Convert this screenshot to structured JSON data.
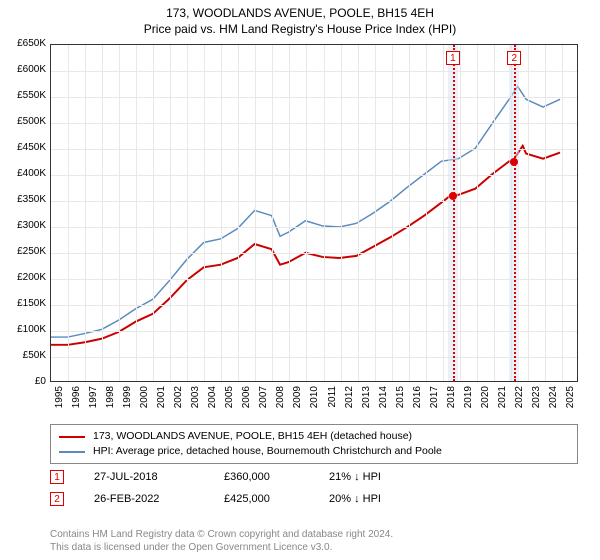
{
  "title_line1": "173, WOODLANDS AVENUE, POOLE, BH15 4EH",
  "title_line2": "Price paid vs. HM Land Registry's House Price Index (HPI)",
  "chart": {
    "type": "line",
    "ylim": [
      0,
      650000
    ],
    "ytick_step": 50000,
    "ytick_labels": [
      "£0",
      "£50K",
      "£100K",
      "£150K",
      "£200K",
      "£250K",
      "£300K",
      "£350K",
      "£400K",
      "£450K",
      "£500K",
      "£550K",
      "£600K",
      "£650K"
    ],
    "xlim": [
      1995,
      2026
    ],
    "xtick_labels": [
      "1995",
      "1996",
      "1997",
      "1998",
      "1999",
      "2000",
      "2001",
      "2002",
      "2003",
      "2004",
      "2005",
      "2006",
      "2007",
      "2008",
      "2009",
      "2010",
      "2011",
      "2012",
      "2013",
      "2014",
      "2015",
      "2016",
      "2017",
      "2018",
      "2019",
      "2020",
      "2021",
      "2022",
      "2023",
      "2024",
      "2025"
    ],
    "grid_color": "#e8e8e8",
    "background_color": "#ffffff",
    "series": [
      {
        "name": "property",
        "color": "#cc0000",
        "width": 2,
        "points": [
          [
            1995,
            70000
          ],
          [
            1996,
            70000
          ],
          [
            1997,
            75000
          ],
          [
            1998,
            82000
          ],
          [
            1999,
            95000
          ],
          [
            2000,
            115000
          ],
          [
            2001,
            130000
          ],
          [
            2002,
            160000
          ],
          [
            2003,
            195000
          ],
          [
            2004,
            220000
          ],
          [
            2005,
            225000
          ],
          [
            2006,
            238000
          ],
          [
            2007,
            265000
          ],
          [
            2008,
            255000
          ],
          [
            2008.5,
            225000
          ],
          [
            2009,
            230000
          ],
          [
            2010,
            248000
          ],
          [
            2011,
            240000
          ],
          [
            2012,
            238000
          ],
          [
            2013,
            242000
          ],
          [
            2014,
            260000
          ],
          [
            2015,
            278000
          ],
          [
            2016,
            298000
          ],
          [
            2017,
            320000
          ],
          [
            2018,
            345000
          ],
          [
            2018.6,
            360000
          ],
          [
            2019,
            360000
          ],
          [
            2020,
            372000
          ],
          [
            2021,
            400000
          ],
          [
            2022,
            425000
          ],
          [
            2022.2,
            425000
          ],
          [
            2022.8,
            455000
          ],
          [
            2023,
            440000
          ],
          [
            2024,
            430000
          ],
          [
            2025,
            442000
          ]
        ]
      },
      {
        "name": "hpi",
        "color": "#5b8bbd",
        "width": 1.5,
        "points": [
          [
            1995,
            85000
          ],
          [
            1996,
            85000
          ],
          [
            1997,
            92000
          ],
          [
            1998,
            100000
          ],
          [
            1999,
            118000
          ],
          [
            2000,
            140000
          ],
          [
            2001,
            158000
          ],
          [
            2002,
            195000
          ],
          [
            2003,
            235000
          ],
          [
            2004,
            268000
          ],
          [
            2005,
            275000
          ],
          [
            2006,
            295000
          ],
          [
            2007,
            330000
          ],
          [
            2008,
            320000
          ],
          [
            2008.5,
            280000
          ],
          [
            2009,
            288000
          ],
          [
            2010,
            310000
          ],
          [
            2011,
            300000
          ],
          [
            2012,
            298000
          ],
          [
            2013,
            305000
          ],
          [
            2014,
            325000
          ],
          [
            2015,
            348000
          ],
          [
            2016,
            375000
          ],
          [
            2017,
            400000
          ],
          [
            2018,
            425000
          ],
          [
            2019,
            430000
          ],
          [
            2020,
            450000
          ],
          [
            2021,
            498000
          ],
          [
            2022,
            545000
          ],
          [
            2022.5,
            570000
          ],
          [
            2023,
            545000
          ],
          [
            2024,
            530000
          ],
          [
            2025,
            545000
          ]
        ]
      }
    ],
    "markers": [
      {
        "num": "1",
        "x": 2018.6,
        "y": 360000,
        "band_start": 2018.3,
        "band_end": 2018.9
      },
      {
        "num": "2",
        "x": 2022.2,
        "y": 425000,
        "band_start": 2021.9,
        "band_end": 2022.5
      }
    ],
    "label_fontsize": 10
  },
  "legend": {
    "items": [
      {
        "color": "#cc0000",
        "text": "173, WOODLANDS AVENUE, POOLE, BH15 4EH (detached house)"
      },
      {
        "color": "#5b8bbd",
        "text": "HPI: Average price, detached house, Bournemouth Christchurch and Poole"
      }
    ]
  },
  "sales": [
    {
      "num": "1",
      "date": "27-JUL-2018",
      "price": "£360,000",
      "change": "21% ↓ HPI"
    },
    {
      "num": "2",
      "date": "26-FEB-2022",
      "price": "£425,000",
      "change": "20% ↓ HPI"
    }
  ],
  "footer_line1": "Contains HM Land Registry data © Crown copyright and database right 2024.",
  "footer_line2": "This data is licensed under the Open Government Licence v3.0."
}
